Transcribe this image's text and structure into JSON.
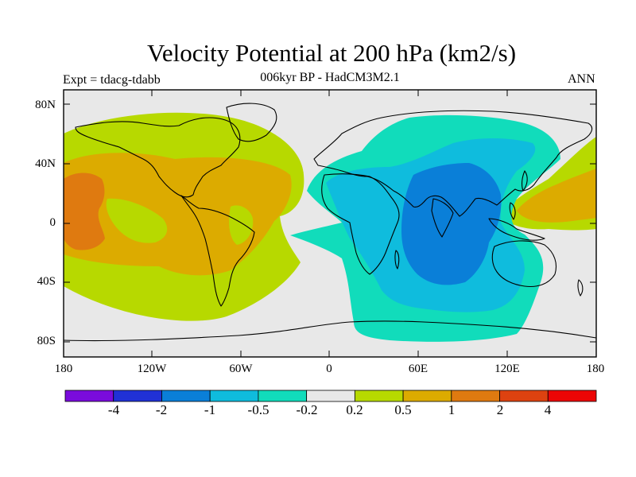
{
  "title": "Velocity Potential at 200 hPa (km2/s)",
  "subtitle": "006kyr BP - HadCM3M2.1",
  "expt_label": "Expt = tdacg-tdabb",
  "season": "ANN",
  "lat_labels": [
    "80N",
    "40N",
    "0",
    "40S",
    "80S"
  ],
  "lon_labels": [
    "180",
    "120W",
    "60W",
    "0",
    "60E",
    "120E",
    "180"
  ],
  "colorbar": {
    "labels": [
      "-4",
      "-2",
      "-1",
      "-0.5",
      "-0.2",
      "0.2",
      "0.5",
      "1",
      "2",
      "4"
    ],
    "colors": [
      "#7a0bdc",
      "#2031d6",
      "#0a7fd8",
      "#0fbcdd",
      "#11dcbb",
      "#e8e8e8",
      "#b7d900",
      "#dcab00",
      "#df7a10",
      "#dd4210",
      "#ec0505"
    ]
  },
  "map_colors": {
    "neutral": "#e8e8e8",
    "pos_02": "#b7d900",
    "pos_05": "#dcab00",
    "pos_1": "#df7a10",
    "neg_02": "#11dcbb",
    "neg_05": "#0fbcdd",
    "neg_1": "#0a7fd8"
  }
}
